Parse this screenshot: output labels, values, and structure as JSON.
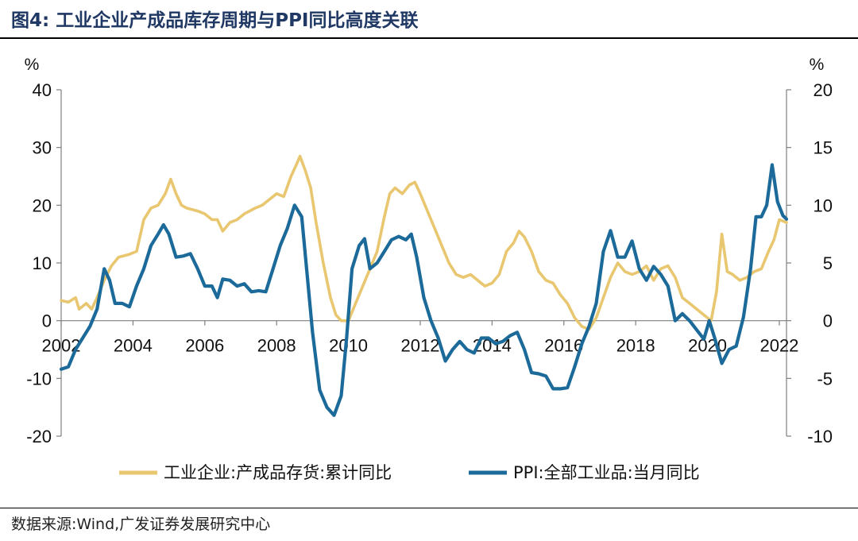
{
  "title": "图4:  工业企业产成品库存周期与PPI同比高度关联",
  "source": "数据来源:Wind,广发证券发展研究中心",
  "chart_data": {
    "type": "line",
    "left_axis": {
      "unit": "%",
      "ylim": [
        -20,
        40
      ],
      "ticks": [
        40,
        30,
        20,
        10,
        0,
        -10,
        -20
      ]
    },
    "right_axis": {
      "unit": "%",
      "ylim": [
        -10,
        20
      ],
      "ticks": [
        20,
        15,
        10,
        5,
        0,
        -5,
        -10
      ]
    },
    "x_ticks": [
      2002,
      2004,
      2006,
      2008,
      2010,
      2012,
      2014,
      2016,
      2018,
      2020,
      2022
    ],
    "xlim": [
      2002.0,
      2022.2
    ],
    "series": [
      {
        "name": "工业企业:产成品存货:累计同比",
        "axis": "left",
        "color": "#E8C770",
        "points": [
          [
            2002.0,
            3.5
          ],
          [
            2002.2,
            3.2
          ],
          [
            2002.4,
            4.0
          ],
          [
            2002.5,
            2.0
          ],
          [
            2002.7,
            3.0
          ],
          [
            2002.85,
            2.0
          ],
          [
            2003.0,
            4.0
          ],
          [
            2003.2,
            7.0
          ],
          [
            2003.4,
            9.5
          ],
          [
            2003.6,
            11.0
          ],
          [
            2003.9,
            11.5
          ],
          [
            2004.1,
            12.0
          ],
          [
            2004.3,
            17.5
          ],
          [
            2004.5,
            19.5
          ],
          [
            2004.7,
            20.0
          ],
          [
            2004.9,
            22.0
          ],
          [
            2005.05,
            24.5
          ],
          [
            2005.2,
            22.0
          ],
          [
            2005.35,
            20.0
          ],
          [
            2005.5,
            19.5
          ],
          [
            2005.8,
            19.0
          ],
          [
            2006.0,
            18.5
          ],
          [
            2006.2,
            17.5
          ],
          [
            2006.35,
            17.5
          ],
          [
            2006.5,
            15.5
          ],
          [
            2006.7,
            17.0
          ],
          [
            2006.9,
            17.5
          ],
          [
            2007.1,
            18.5
          ],
          [
            2007.4,
            19.5
          ],
          [
            2007.6,
            20.0
          ],
          [
            2007.8,
            21.0
          ],
          [
            2008.0,
            22.0
          ],
          [
            2008.2,
            21.5
          ],
          [
            2008.4,
            25.0
          ],
          [
            2008.55,
            27.0
          ],
          [
            2008.65,
            28.5
          ],
          [
            2008.8,
            26.0
          ],
          [
            2008.95,
            23.0
          ],
          [
            2009.1,
            17.0
          ],
          [
            2009.3,
            10.0
          ],
          [
            2009.5,
            4.0
          ],
          [
            2009.65,
            1.0
          ],
          [
            2009.8,
            0.0
          ],
          [
            2010.0,
            0.0
          ],
          [
            2010.2,
            3.0
          ],
          [
            2010.4,
            6.0
          ],
          [
            2010.6,
            9.0
          ],
          [
            2010.8,
            12.0
          ],
          [
            2011.0,
            18.0
          ],
          [
            2011.15,
            22.0
          ],
          [
            2011.3,
            23.0
          ],
          [
            2011.5,
            22.0
          ],
          [
            2011.7,
            23.5
          ],
          [
            2011.85,
            24.0
          ],
          [
            2012.0,
            22.0
          ],
          [
            2012.2,
            19.0
          ],
          [
            2012.4,
            16.0
          ],
          [
            2012.6,
            13.0
          ],
          [
            2012.8,
            10.0
          ],
          [
            2013.0,
            8.0
          ],
          [
            2013.2,
            7.5
          ],
          [
            2013.4,
            8.0
          ],
          [
            2013.6,
            7.0
          ],
          [
            2013.8,
            6.0
          ],
          [
            2014.0,
            6.5
          ],
          [
            2014.2,
            8.0
          ],
          [
            2014.4,
            12.0
          ],
          [
            2014.6,
            13.5
          ],
          [
            2014.75,
            15.5
          ],
          [
            2014.9,
            14.5
          ],
          [
            2015.1,
            12.0
          ],
          [
            2015.3,
            8.5
          ],
          [
            2015.5,
            7.0
          ],
          [
            2015.7,
            6.5
          ],
          [
            2015.9,
            4.5
          ],
          [
            2016.1,
            3.0
          ],
          [
            2016.3,
            0.5
          ],
          [
            2016.5,
            -1.0
          ],
          [
            2016.7,
            -1.5
          ],
          [
            2016.9,
            0.5
          ],
          [
            2017.1,
            4.0
          ],
          [
            2017.3,
            7.5
          ],
          [
            2017.5,
            10.0
          ],
          [
            2017.7,
            8.5
          ],
          [
            2017.9,
            8.0
          ],
          [
            2018.1,
            8.5
          ],
          [
            2018.3,
            9.5
          ],
          [
            2018.5,
            7.0
          ],
          [
            2018.7,
            9.0
          ],
          [
            2018.9,
            9.5
          ],
          [
            2019.1,
            7.5
          ],
          [
            2019.3,
            4.0
          ],
          [
            2019.5,
            3.0
          ],
          [
            2019.7,
            2.0
          ],
          [
            2019.9,
            1.0
          ],
          [
            2020.1,
            0.0
          ],
          [
            2020.25,
            5.0
          ],
          [
            2020.4,
            15.0
          ],
          [
            2020.55,
            8.5
          ],
          [
            2020.7,
            8.0
          ],
          [
            2020.9,
            7.0
          ],
          [
            2021.1,
            7.5
          ],
          [
            2021.3,
            8.5
          ],
          [
            2021.5,
            9.0
          ],
          [
            2021.7,
            12.0
          ],
          [
            2021.85,
            14.0
          ],
          [
            2022.0,
            17.5
          ],
          [
            2022.2,
            17.0
          ]
        ]
      },
      {
        "name": "PPI:全部工业品:当月同比",
        "axis": "right",
        "color": "#1C6A9A",
        "points": [
          [
            2002.0,
            -4.2
          ],
          [
            2002.2,
            -4.0
          ],
          [
            2002.4,
            -2.5
          ],
          [
            2002.6,
            -1.5
          ],
          [
            2002.8,
            -0.5
          ],
          [
            2003.0,
            1.0
          ],
          [
            2003.2,
            4.5
          ],
          [
            2003.35,
            3.5
          ],
          [
            2003.5,
            1.5
          ],
          [
            2003.7,
            1.5
          ],
          [
            2003.9,
            1.2
          ],
          [
            2004.1,
            3.0
          ],
          [
            2004.3,
            4.5
          ],
          [
            2004.5,
            6.5
          ],
          [
            2004.7,
            7.5
          ],
          [
            2004.85,
            8.3
          ],
          [
            2005.0,
            7.5
          ],
          [
            2005.2,
            5.5
          ],
          [
            2005.4,
            5.6
          ],
          [
            2005.6,
            5.8
          ],
          [
            2005.8,
            4.5
          ],
          [
            2006.0,
            3.0
          ],
          [
            2006.2,
            3.0
          ],
          [
            2006.35,
            2.0
          ],
          [
            2006.5,
            3.6
          ],
          [
            2006.7,
            3.5
          ],
          [
            2006.9,
            3.0
          ],
          [
            2007.1,
            3.2
          ],
          [
            2007.3,
            2.5
          ],
          [
            2007.5,
            2.6
          ],
          [
            2007.7,
            2.5
          ],
          [
            2007.9,
            4.5
          ],
          [
            2008.1,
            6.5
          ],
          [
            2008.3,
            8.0
          ],
          [
            2008.5,
            10.0
          ],
          [
            2008.7,
            9.0
          ],
          [
            2008.85,
            4.0
          ],
          [
            2009.0,
            -1.0
          ],
          [
            2009.2,
            -6.0
          ],
          [
            2009.4,
            -7.5
          ],
          [
            2009.6,
            -8.2
          ],
          [
            2009.8,
            -6.5
          ],
          [
            2009.95,
            -1.5
          ],
          [
            2010.1,
            4.5
          ],
          [
            2010.3,
            6.5
          ],
          [
            2010.45,
            7.1
          ],
          [
            2010.6,
            4.5
          ],
          [
            2010.8,
            5.0
          ],
          [
            2011.0,
            6.0
          ],
          [
            2011.2,
            7.0
          ],
          [
            2011.4,
            7.3
          ],
          [
            2011.6,
            7.0
          ],
          [
            2011.75,
            7.5
          ],
          [
            2011.9,
            5.5
          ],
          [
            2012.1,
            2.0
          ],
          [
            2012.3,
            0.0
          ],
          [
            2012.5,
            -1.5
          ],
          [
            2012.7,
            -3.5
          ],
          [
            2012.9,
            -2.5
          ],
          [
            2013.1,
            -1.8
          ],
          [
            2013.3,
            -2.5
          ],
          [
            2013.5,
            -2.8
          ],
          [
            2013.7,
            -1.5
          ],
          [
            2013.9,
            -1.5
          ],
          [
            2014.1,
            -2.0
          ],
          [
            2014.3,
            -1.8
          ],
          [
            2014.5,
            -1.3
          ],
          [
            2014.7,
            -1.0
          ],
          [
            2014.9,
            -2.5
          ],
          [
            2015.1,
            -4.5
          ],
          [
            2015.3,
            -4.6
          ],
          [
            2015.5,
            -4.8
          ],
          [
            2015.7,
            -5.9
          ],
          [
            2015.9,
            -5.9
          ],
          [
            2016.1,
            -5.8
          ],
          [
            2016.3,
            -4.0
          ],
          [
            2016.5,
            -2.0
          ],
          [
            2016.7,
            -0.5
          ],
          [
            2016.9,
            1.5
          ],
          [
            2017.1,
            6.0
          ],
          [
            2017.3,
            7.8
          ],
          [
            2017.5,
            5.5
          ],
          [
            2017.7,
            5.5
          ],
          [
            2017.9,
            6.9
          ],
          [
            2018.1,
            4.5
          ],
          [
            2018.3,
            3.5
          ],
          [
            2018.5,
            4.7
          ],
          [
            2018.7,
            4.0
          ],
          [
            2018.9,
            3.0
          ],
          [
            2019.1,
            0.0
          ],
          [
            2019.3,
            0.6
          ],
          [
            2019.5,
            0.0
          ],
          [
            2019.7,
            -0.8
          ],
          [
            2019.9,
            -1.6
          ],
          [
            2020.05,
            0.0
          ],
          [
            2020.2,
            -1.5
          ],
          [
            2020.4,
            -3.7
          ],
          [
            2020.6,
            -2.5
          ],
          [
            2020.8,
            -2.2
          ],
          [
            2021.0,
            0.3
          ],
          [
            2021.2,
            4.5
          ],
          [
            2021.35,
            9.0
          ],
          [
            2021.5,
            9.0
          ],
          [
            2021.65,
            10.0
          ],
          [
            2021.8,
            13.5
          ],
          [
            2021.95,
            10.3
          ],
          [
            2022.1,
            9.1
          ],
          [
            2022.2,
            8.8
          ]
        ]
      }
    ]
  }
}
